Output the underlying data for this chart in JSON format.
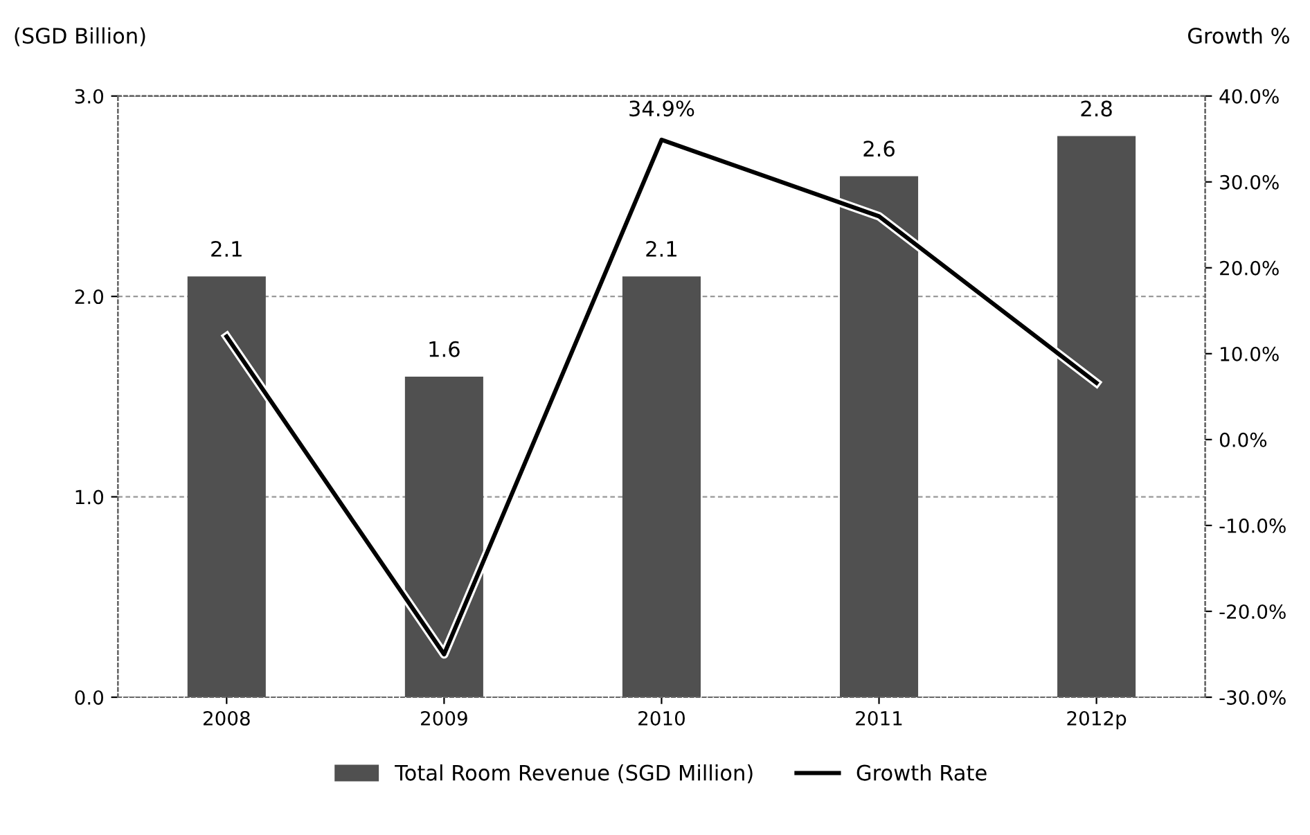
{
  "chart_data": {
    "type": "bar",
    "ylabel": "(SGD Billion)",
    "y2label": "Growth %",
    "categories": [
      "2008",
      "2009",
      "2010",
      "2011",
      "2012p"
    ],
    "series": [
      {
        "name": "Total Room Revenue (SGD Million)",
        "color": "#505050",
        "values": [
          2.1,
          1.6,
          2.1,
          2.6,
          2.8
        ],
        "data_labels": true
      },
      {
        "name": "Growth Rate",
        "type": "line",
        "axis": "y2",
        "color": "#000000",
        "values": [
          12,
          -25,
          34.9,
          26,
          6.6
        ],
        "value_labels": [
          null,
          null,
          "34.9%",
          null,
          null
        ]
      }
    ],
    "ylim": [
      0,
      3
    ],
    "yticks": [
      {
        "value": 0,
        "label": "0.0"
      },
      {
        "value": 1,
        "label": "1.0"
      },
      {
        "value": 2,
        "label": "2.0"
      },
      {
        "value": 3,
        "label": "3.0"
      }
    ],
    "y2lim": [
      -30,
      40
    ],
    "y2ticks": [
      {
        "value": -30,
        "label": "-30.0%"
      },
      {
        "value": -20,
        "label": "-20.0%"
      },
      {
        "value": -10,
        "label": "-10.0%"
      },
      {
        "value": 0,
        "label": "0.0%"
      },
      {
        "value": 10,
        "label": "10.0%"
      },
      {
        "value": 20,
        "label": "20.0%"
      },
      {
        "value": 30,
        "label": "30.0%"
      },
      {
        "value": 40,
        "label": "40.0%"
      }
    ],
    "grid": "y",
    "legend": "bottom",
    "marker": "none",
    "line_style": "solid"
  }
}
